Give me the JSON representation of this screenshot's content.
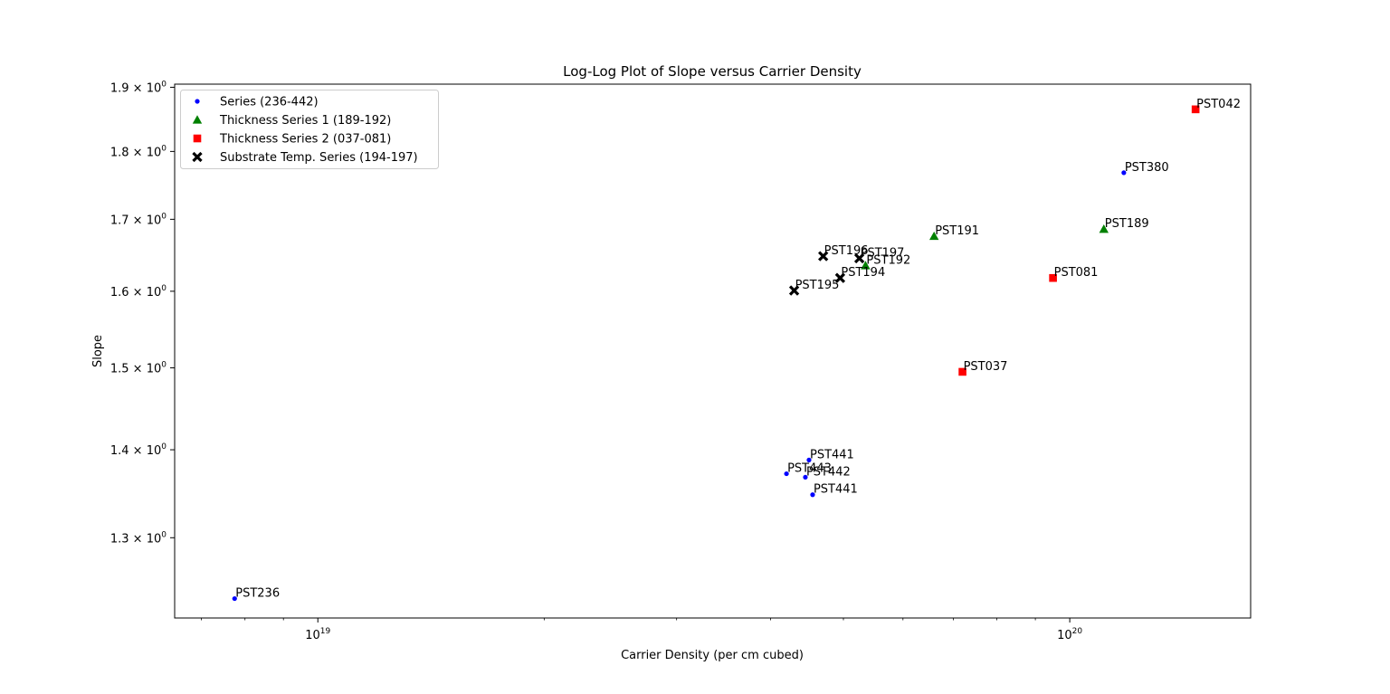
{
  "chart_data": {
    "type": "scatter",
    "title": "Log-Log Plot of Slope versus Carrier Density",
    "xlabel": "Carrier Density (per cm cubed)",
    "ylabel": "Slope",
    "xscale": "log",
    "yscale": "log",
    "xlim": [
      6.45e+18,
      1.74e+20
    ],
    "ylim": [
      1.215,
      1.905
    ],
    "x_ticks": [
      {
        "value": 1e+19,
        "base": "10",
        "exp": "19"
      },
      {
        "value": 1e+20,
        "base": "10",
        "exp": "20"
      }
    ],
    "y_ticks": [
      {
        "value": 1.3,
        "mant": "1.3",
        "base": "10",
        "exp": "0"
      },
      {
        "value": 1.4,
        "mant": "1.4",
        "base": "10",
        "exp": "0"
      },
      {
        "value": 1.5,
        "mant": "1.5",
        "base": "10",
        "exp": "0"
      },
      {
        "value": 1.6,
        "mant": "1.6",
        "base": "10",
        "exp": "0"
      },
      {
        "value": 1.7,
        "mant": "1.7",
        "base": "10",
        "exp": "0"
      },
      {
        "value": 1.8,
        "mant": "1.8",
        "base": "10",
        "exp": "0"
      },
      {
        "value": 1.9,
        "mant": "1.9",
        "base": "10",
        "exp": "0"
      }
    ],
    "grid": false,
    "legend_position": "upper-left",
    "series": [
      {
        "name": "Series (236-442)",
        "marker": "circle",
        "color": "#0000ff",
        "points": [
          {
            "x": 7.75e+18,
            "y": 1.235,
            "label": "PST236"
          },
          {
            "x": 4.5e+19,
            "y": 1.388,
            "label": "PST441"
          },
          {
            "x": 4.2e+19,
            "y": 1.372,
            "label": "PST443"
          },
          {
            "x": 4.45e+19,
            "y": 1.368,
            "label": "PST442"
          },
          {
            "x": 4.55e+19,
            "y": 1.348,
            "label": "PST441"
          },
          {
            "x": 1.18e+20,
            "y": 1.768,
            "label": "PST380"
          }
        ]
      },
      {
        "name": "Thickness Series 1 (189-192)",
        "marker": "triangle",
        "color": "#008000",
        "points": [
          {
            "x": 1.11e+20,
            "y": 1.686,
            "label": "PST189"
          },
          {
            "x": 6.6e+19,
            "y": 1.676,
            "label": "PST191"
          },
          {
            "x": 5.35e+19,
            "y": 1.635,
            "label": "PST192"
          }
        ]
      },
      {
        "name": "Thickness Series 2 (037-081)",
        "marker": "square",
        "color": "#ff0000",
        "points": [
          {
            "x": 1.47e+20,
            "y": 1.865,
            "label": "PST042"
          },
          {
            "x": 9.5e+19,
            "y": 1.618,
            "label": "PST081"
          },
          {
            "x": 7.2e+19,
            "y": 1.495,
            "label": "PST037"
          }
        ]
      },
      {
        "name": "Substrate Temp. Series (194-197)",
        "marker": "x",
        "color": "#000000",
        "points": [
          {
            "x": 4.7e+19,
            "y": 1.648,
            "label": "PST196"
          },
          {
            "x": 5.25e+19,
            "y": 1.645,
            "label": "PST197"
          },
          {
            "x": 4.95e+19,
            "y": 1.618,
            "label": "PST194"
          },
          {
            "x": 4.3e+19,
            "y": 1.601,
            "label": "PST195"
          }
        ]
      }
    ]
  }
}
